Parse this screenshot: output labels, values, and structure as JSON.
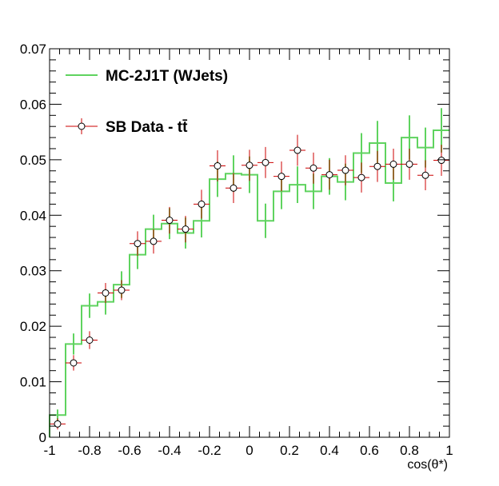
{
  "chart_data": {
    "type": "line",
    "title": "",
    "xlabel": "cos(θ*)",
    "ylabel": "",
    "xlim": [
      -1,
      1
    ],
    "ylim": [
      0,
      0.07
    ],
    "x_ticks": [
      "-1",
      "-0.8",
      "-0.6",
      "-0.4",
      "-0.2",
      "0",
      "0.2",
      "0.4",
      "0.6",
      "0.8",
      "1"
    ],
    "y_ticks": [
      "0",
      "0.01",
      "0.02",
      "0.03",
      "0.04",
      "0.05",
      "0.06",
      "0.07"
    ],
    "legend_position": "top-left",
    "bin_edges": [
      -1,
      -0.92,
      -0.84,
      -0.76,
      -0.68,
      -0.6,
      -0.52,
      -0.44,
      -0.36,
      -0.28,
      -0.2,
      -0.12,
      -0.04,
      0.04,
      0.12,
      0.2,
      0.28,
      0.36,
      0.44,
      0.52,
      0.6,
      0.68,
      0.76,
      0.84,
      0.92,
      1
    ],
    "series": [
      {
        "name": "MC-2J1T (WJets)",
        "style": "histogram",
        "color": "#5fd35f",
        "values": [
          0.004,
          0.0168,
          0.0237,
          0.0244,
          0.0275,
          0.0329,
          0.0375,
          0.0385,
          0.0368,
          0.039,
          0.0465,
          0.0475,
          0.0473,
          0.039,
          0.0443,
          0.0455,
          0.0443,
          0.047,
          0.046,
          0.0512,
          0.053,
          0.0458,
          0.054,
          0.0522,
          0.0553
        ],
        "errors": [
          0.001,
          0.0019,
          0.0022,
          0.0023,
          0.0024,
          0.0026,
          0.0026,
          0.0028,
          0.0028,
          0.003,
          0.0032,
          0.0033,
          0.0033,
          0.0031,
          0.0032,
          0.0033,
          0.0032,
          0.0033,
          0.0033,
          0.0036,
          0.004,
          0.0033,
          0.004,
          0.0036,
          0.004
        ]
      },
      {
        "name": "SB Data - tt̄",
        "style": "points",
        "color": "#cc0000",
        "values": [
          0.0024,
          0.0134,
          0.0175,
          0.026,
          0.0265,
          0.0349,
          0.0353,
          0.0391,
          0.0375,
          0.042,
          0.0489,
          0.0449,
          0.049,
          0.0495,
          0.047,
          0.0517,
          0.0485,
          0.0473,
          0.0481,
          0.0468,
          0.0488,
          0.0492,
          0.0492,
          0.0472,
          0.0499
        ],
        "errors": [
          0.001,
          0.0014,
          0.0016,
          0.0018,
          0.0018,
          0.0022,
          0.0022,
          0.0024,
          0.0024,
          0.0026,
          0.0028,
          0.0027,
          0.0028,
          0.0028,
          0.0027,
          0.0028,
          0.0028,
          0.0027,
          0.0027,
          0.0027,
          0.0028,
          0.0028,
          0.0028,
          0.0027,
          0.0028
        ]
      }
    ]
  }
}
